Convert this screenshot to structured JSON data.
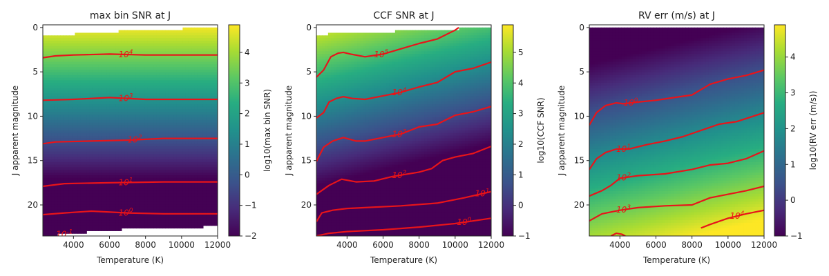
{
  "chart_data": [
    {
      "type": "heatmap",
      "title": "max bin SNR at J",
      "xlabel": "Temperature (K)",
      "ylabel": "J apparent magnitude",
      "xlim": [
        2300,
        12000
      ],
      "ylim": [
        23.5,
        -0.3
      ],
      "xticks": [
        4000,
        6000,
        8000,
        10000,
        12000
      ],
      "yticks": [
        0,
        5,
        10,
        15,
        20
      ],
      "colorbar": {
        "label": "log10(max bin SNR)",
        "range": [
          -2,
          4.9
        ],
        "ticks": [
          -2,
          -1,
          0,
          1,
          2,
          3,
          4
        ],
        "colormap": "viridis"
      },
      "field": {
        "v_ref": 4.8,
        "rate": -0.4,
        "temp_slope": 0.0,
        "temp_curve": 0.0,
        "coverage_top": [
          [
            2300,
            1.0
          ],
          [
            5000,
            0.6
          ],
          [
            8000,
            0.3
          ],
          [
            12000,
            0.0
          ]
        ],
        "coverage_bottom": [
          [
            2300,
            23.5
          ],
          [
            6000,
            22.8
          ],
          [
            12000,
            22.4
          ]
        ]
      },
      "contours": [
        {
          "label": "10^4",
          "label_x": 6900,
          "points": [
            [
              2300,
              3.4
            ],
            [
              3000,
              3.2
            ],
            [
              4000,
              3.1
            ],
            [
              6000,
              3.0
            ],
            [
              8000,
              3.1
            ],
            [
              10000,
              3.1
            ],
            [
              12000,
              3.1
            ]
          ]
        },
        {
          "label": "10^3",
          "label_x": 6900,
          "points": [
            [
              2300,
              8.2
            ],
            [
              4000,
              8.1
            ],
            [
              6000,
              7.9
            ],
            [
              8000,
              8.1
            ],
            [
              10000,
              8.1
            ],
            [
              12000,
              8.1
            ]
          ]
        },
        {
          "label": "10^2",
          "label_x": 7400,
          "points": [
            [
              2300,
              13.1
            ],
            [
              3000,
              12.9
            ],
            [
              5000,
              12.8
            ],
            [
              7000,
              12.7
            ],
            [
              9000,
              12.5
            ],
            [
              12000,
              12.5
            ]
          ]
        },
        {
          "label": "10^1",
          "label_x": 6900,
          "points": [
            [
              2300,
              17.9
            ],
            [
              3500,
              17.6
            ],
            [
              6000,
              17.5
            ],
            [
              9000,
              17.4
            ],
            [
              12000,
              17.4
            ]
          ]
        },
        {
          "label": "10^0",
          "label_x": 6900,
          "points": [
            [
              2300,
              21.1
            ],
            [
              3500,
              20.9
            ],
            [
              5000,
              20.7
            ],
            [
              7000,
              20.9
            ],
            [
              9000,
              21.0
            ],
            [
              12000,
              21.0
            ]
          ]
        },
        {
          "label": "10^-1",
          "label_x": 3500,
          "points": []
        }
      ]
    },
    {
      "type": "heatmap",
      "title": "CCF SNR at J",
      "xlabel": "Temperature (K)",
      "ylabel": "J apparent magnitude",
      "xlim": [
        2300,
        12000
      ],
      "ylim": [
        23.5,
        -0.3
      ],
      "xticks": [
        4000,
        6000,
        8000,
        10000,
        12000
      ],
      "yticks": [
        0,
        5,
        10,
        15,
        20
      ],
      "colorbar": {
        "label": "log10(CCF SNR)",
        "range": [
          -1,
          5.9
        ],
        "ticks": [
          -1,
          0,
          1,
          2,
          3,
          4,
          5
        ],
        "colormap": "viridis"
      },
      "field": {
        "v_ref": 5.6,
        "rate": -0.37,
        "temp_slope": -0.00018,
        "temp_curve": 0.0,
        "coverage_top": [
          [
            2300,
            0.8
          ],
          [
            12000,
            0.0
          ]
        ],
        "coverage_bottom": [
          [
            2300,
            23.5
          ],
          [
            12000,
            23.5
          ]
        ]
      },
      "contours": [
        {
          "label": "10^5",
          "label_x": 5900,
          "points": [
            [
              2300,
              5.6
            ],
            [
              2700,
              4.8
            ],
            [
              3100,
              3.3
            ],
            [
              3500,
              2.9
            ],
            [
              3800,
              2.8
            ],
            [
              4200,
              3.0
            ],
            [
              5000,
              3.3
            ],
            [
              6000,
              3.0
            ],
            [
              7000,
              2.4
            ],
            [
              8000,
              1.8
            ],
            [
              9000,
              1.3
            ],
            [
              10000,
              0.3
            ],
            [
              10200,
              0.0
            ]
          ]
        },
        {
          "label": "10^4",
          "label_x": 6900,
          "points": [
            [
              2300,
              10.2
            ],
            [
              2700,
              9.6
            ],
            [
              3000,
              8.4
            ],
            [
              3400,
              8.0
            ],
            [
              3800,
              7.8
            ],
            [
              4300,
              8.0
            ],
            [
              5000,
              8.1
            ],
            [
              6000,
              7.7
            ],
            [
              7000,
              7.3
            ],
            [
              8000,
              6.7
            ],
            [
              9000,
              6.2
            ],
            [
              10000,
              5.0
            ],
            [
              11000,
              4.6
            ],
            [
              12000,
              3.9
            ]
          ]
        },
        {
          "label": "10^3",
          "label_x": 6900,
          "points": [
            [
              2300,
              15.1
            ],
            [
              2700,
              13.5
            ],
            [
              3200,
              12.8
            ],
            [
              3800,
              12.4
            ],
            [
              4500,
              12.8
            ],
            [
              5000,
              12.8
            ],
            [
              6000,
              12.4
            ],
            [
              7000,
              12.0
            ],
            [
              8000,
              11.2
            ],
            [
              9000,
              10.9
            ],
            [
              10000,
              9.9
            ],
            [
              11000,
              9.5
            ],
            [
              12000,
              8.9
            ]
          ]
        },
        {
          "label": "10^2",
          "label_x": 6900,
          "points": [
            [
              2300,
              18.8
            ],
            [
              3000,
              17.8
            ],
            [
              3700,
              17.1
            ],
            [
              4500,
              17.4
            ],
            [
              5500,
              17.3
            ],
            [
              6500,
              16.8
            ],
            [
              8000,
              16.3
            ],
            [
              8700,
              15.9
            ],
            [
              9300,
              15.0
            ],
            [
              10000,
              14.6
            ],
            [
              11000,
              14.2
            ],
            [
              12000,
              13.4
            ]
          ]
        },
        {
          "label": "10^1",
          "label_x": 11500,
          "points": [
            [
              2300,
              21.9
            ],
            [
              2600,
              20.9
            ],
            [
              3200,
              20.6
            ],
            [
              4000,
              20.4
            ],
            [
              5000,
              20.3
            ],
            [
              7000,
              20.1
            ],
            [
              9000,
              19.8
            ],
            [
              10500,
              19.2
            ],
            [
              12000,
              18.5
            ]
          ]
        },
        {
          "label": "10^0",
          "label_x": 10500,
          "points": [
            [
              2300,
              23.5
            ],
            [
              3000,
              23.2
            ],
            [
              4000,
              23.0
            ],
            [
              6000,
              22.8
            ],
            [
              8000,
              22.5
            ],
            [
              10000,
              22.1
            ],
            [
              12000,
              21.5
            ]
          ]
        }
      ]
    },
    {
      "type": "heatmap",
      "title": "RV err (m/s) at J",
      "xlabel": "Temperature (K)",
      "ylabel": "J apparent magnitude",
      "xlim": [
        2300,
        12000
      ],
      "ylim": [
        23.5,
        -0.3
      ],
      "xticks": [
        4000,
        6000,
        8000,
        10000,
        12000
      ],
      "yticks": [
        0,
        5,
        10,
        15,
        20
      ],
      "colorbar": {
        "label": "log10(RV err (m/s))",
        "range": [
          -1,
          4.9
        ],
        "ticks": [
          -1,
          0,
          1,
          2,
          3,
          4
        ],
        "colormap": "viridis"
      },
      "field": {
        "v_ref": -2.1,
        "rate": 0.265,
        "temp_slope": 0.00013,
        "temp_curve": 0.0,
        "coverage_top": [
          [
            2300,
            0.0
          ],
          [
            12000,
            0.0
          ]
        ],
        "coverage_bottom": [
          [
            2300,
            23.5
          ],
          [
            12000,
            23.5
          ]
        ]
      },
      "contours": [
        {
          "label": "10^0",
          "label_x": 4600,
          "points": [
            [
              2300,
              11.0
            ],
            [
              2700,
              9.6
            ],
            [
              3200,
              8.8
            ],
            [
              3800,
              8.5
            ],
            [
              4200,
              8.6
            ],
            [
              5000,
              8.4
            ],
            [
              6000,
              8.2
            ],
            [
              7000,
              7.9
            ],
            [
              8000,
              7.6
            ],
            [
              9000,
              6.4
            ],
            [
              10000,
              5.8
            ],
            [
              11000,
              5.4
            ],
            [
              12000,
              4.8
            ]
          ]
        },
        {
          "label": "10^1",
          "label_x": 4200,
          "points": [
            [
              2300,
              16.0
            ],
            [
              2700,
              14.8
            ],
            [
              3200,
              14.1
            ],
            [
              3800,
              13.7
            ],
            [
              4500,
              13.7
            ],
            [
              5500,
              13.2
            ],
            [
              6500,
              12.8
            ],
            [
              7500,
              12.3
            ],
            [
              8500,
              11.6
            ],
            [
              9500,
              10.9
            ],
            [
              10500,
              10.6
            ],
            [
              12000,
              9.6
            ]
          ]
        },
        {
          "label": "10^2",
          "label_x": 4200,
          "points": [
            [
              2300,
              19.0
            ],
            [
              3000,
              18.4
            ],
            [
              3500,
              17.8
            ],
            [
              4000,
              17.0
            ],
            [
              5000,
              16.7
            ],
            [
              6500,
              16.5
            ],
            [
              8000,
              16.0
            ],
            [
              9000,
              15.5
            ],
            [
              10000,
              15.3
            ],
            [
              11000,
              14.8
            ],
            [
              12000,
              13.9
            ]
          ]
        },
        {
          "label": "10^3",
          "label_x": 4200,
          "points": [
            [
              2300,
              21.8
            ],
            [
              3000,
              21.0
            ],
            [
              4000,
              20.6
            ],
            [
              5000,
              20.3
            ],
            [
              6500,
              20.1
            ],
            [
              8000,
              20.0
            ],
            [
              9000,
              19.2
            ],
            [
              10000,
              18.8
            ],
            [
              11000,
              18.4
            ],
            [
              12000,
              17.9
            ]
          ]
        },
        {
          "label": "10^4",
          "label_x": 10500,
          "points": [
            [
              8500,
              22.6
            ],
            [
              9000,
              22.2
            ],
            [
              10000,
              21.5
            ],
            [
              11000,
              21.0
            ],
            [
              12000,
              20.6
            ]
          ]
        },
        {
          "label": "",
          "label_x": 0,
          "points": [
            [
              3500,
              23.5
            ],
            [
              3800,
              23.2
            ],
            [
              4100,
              23.3
            ],
            [
              4300,
              23.5
            ]
          ]
        }
      ]
    }
  ]
}
